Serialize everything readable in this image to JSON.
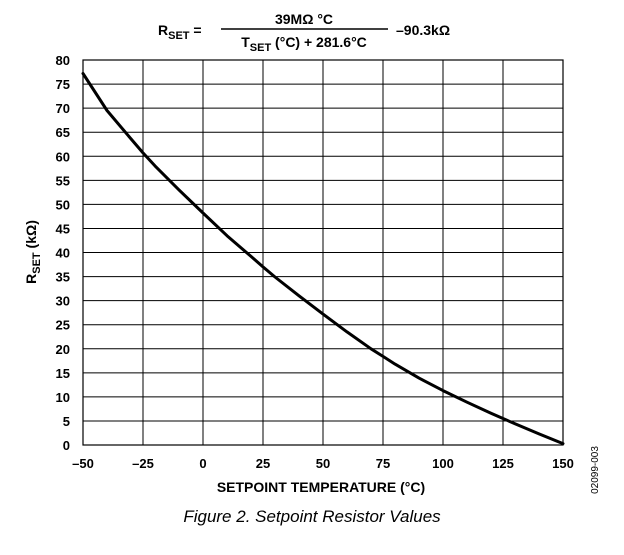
{
  "formula": {
    "lhs_main": "R",
    "lhs_sub": "SET",
    "equals": "=",
    "numerator": "39MΩ °C",
    "denominator_main": "T",
    "denominator_sub": "SET",
    "denominator_rest": " (°C) + 281.6°C",
    "tail": "–90.3kΩ"
  },
  "figure_id": "02099-003",
  "caption": "Figure 2. Setpoint Resistor Values",
  "chart_data": {
    "type": "line",
    "xlabel": "SETPOINT TEMPERATURE (°C)",
    "ylabel_main": "R",
    "ylabel_sub": "SET",
    "ylabel_unit": " (kΩ)",
    "xlim": [
      -50,
      150
    ],
    "ylim": [
      0,
      80
    ],
    "x_ticks": [
      -50,
      -25,
      0,
      25,
      50,
      75,
      100,
      125,
      150
    ],
    "x_tick_labels": [
      "–50",
      "–25",
      "0",
      "25",
      "50",
      "75",
      "100",
      "125",
      "150"
    ],
    "y_ticks": [
      0,
      5,
      10,
      15,
      20,
      25,
      30,
      35,
      40,
      45,
      50,
      55,
      60,
      65,
      70,
      75,
      80
    ],
    "grid": true,
    "series": [
      {
        "x": [
          -50,
          -40,
          -30,
          -25,
          -20,
          -10,
          0,
          10,
          20,
          25,
          30,
          40,
          50,
          60,
          70,
          75,
          80,
          90,
          100,
          110,
          120,
          125,
          130,
          140,
          150
        ],
        "y": [
          77.2,
          69.5,
          63.6,
          60.7,
          58.0,
          53.0,
          48.2,
          43.5,
          39.2,
          37.0,
          34.9,
          31.0,
          27.2,
          23.5,
          20.0,
          18.4,
          16.8,
          13.9,
          11.3,
          8.9,
          6.6,
          5.5,
          4.4,
          2.3,
          0.3
        ]
      }
    ]
  }
}
